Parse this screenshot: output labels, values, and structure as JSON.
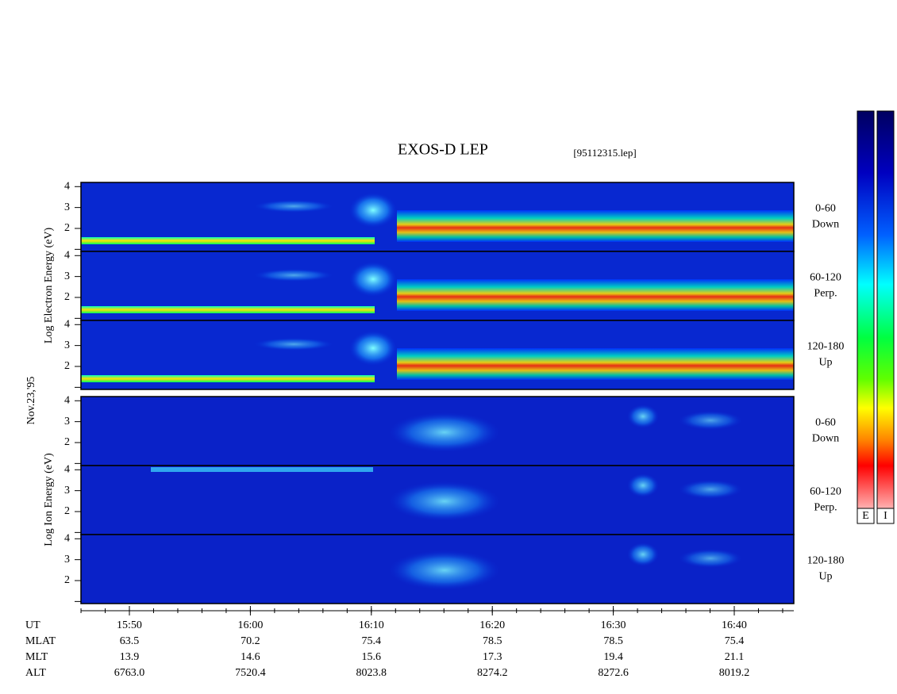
{
  "header": {
    "title": "EXOS-D LEP",
    "file": "[95112315.lep]"
  },
  "axis_labels": {
    "electron": "Log Electron Energy (eV)",
    "ion": "Log Ion Energy (eV)",
    "date": "Nov.23,'95"
  },
  "energy_ticks": [
    "4",
    "3",
    "2"
  ],
  "panels": [
    {
      "species": "electron",
      "label": "0-60",
      "sublabel": "Down"
    },
    {
      "species": "electron",
      "label": "60-120",
      "sublabel": "Perp."
    },
    {
      "species": "electron",
      "label": "120-180",
      "sublabel": "Up"
    },
    {
      "species": "ion",
      "label": "0-60",
      "sublabel": "Down"
    },
    {
      "species": "ion",
      "label": "60-120",
      "sublabel": "Perp."
    },
    {
      "species": "ion",
      "label": "120-180",
      "sublabel": "Up"
    }
  ],
  "ephemeris": {
    "rows": [
      [
        "UT",
        "15:50",
        "16:00",
        "16:10",
        "16:20",
        "16:30",
        "16:40"
      ],
      [
        "MLAT",
        "63.5",
        "70.2",
        "75.4",
        "78.5",
        "78.5",
        "75.4"
      ],
      [
        "MLT",
        "13.9",
        "14.6",
        "15.6",
        "17.3",
        "19.4",
        "21.1"
      ],
      [
        "ALT",
        "6763.0",
        "7520.4",
        "8023.8",
        "8274.2",
        "8272.6",
        "8019.2"
      ]
    ]
  },
  "colorbar_labels": [
    "E",
    "I"
  ]
}
